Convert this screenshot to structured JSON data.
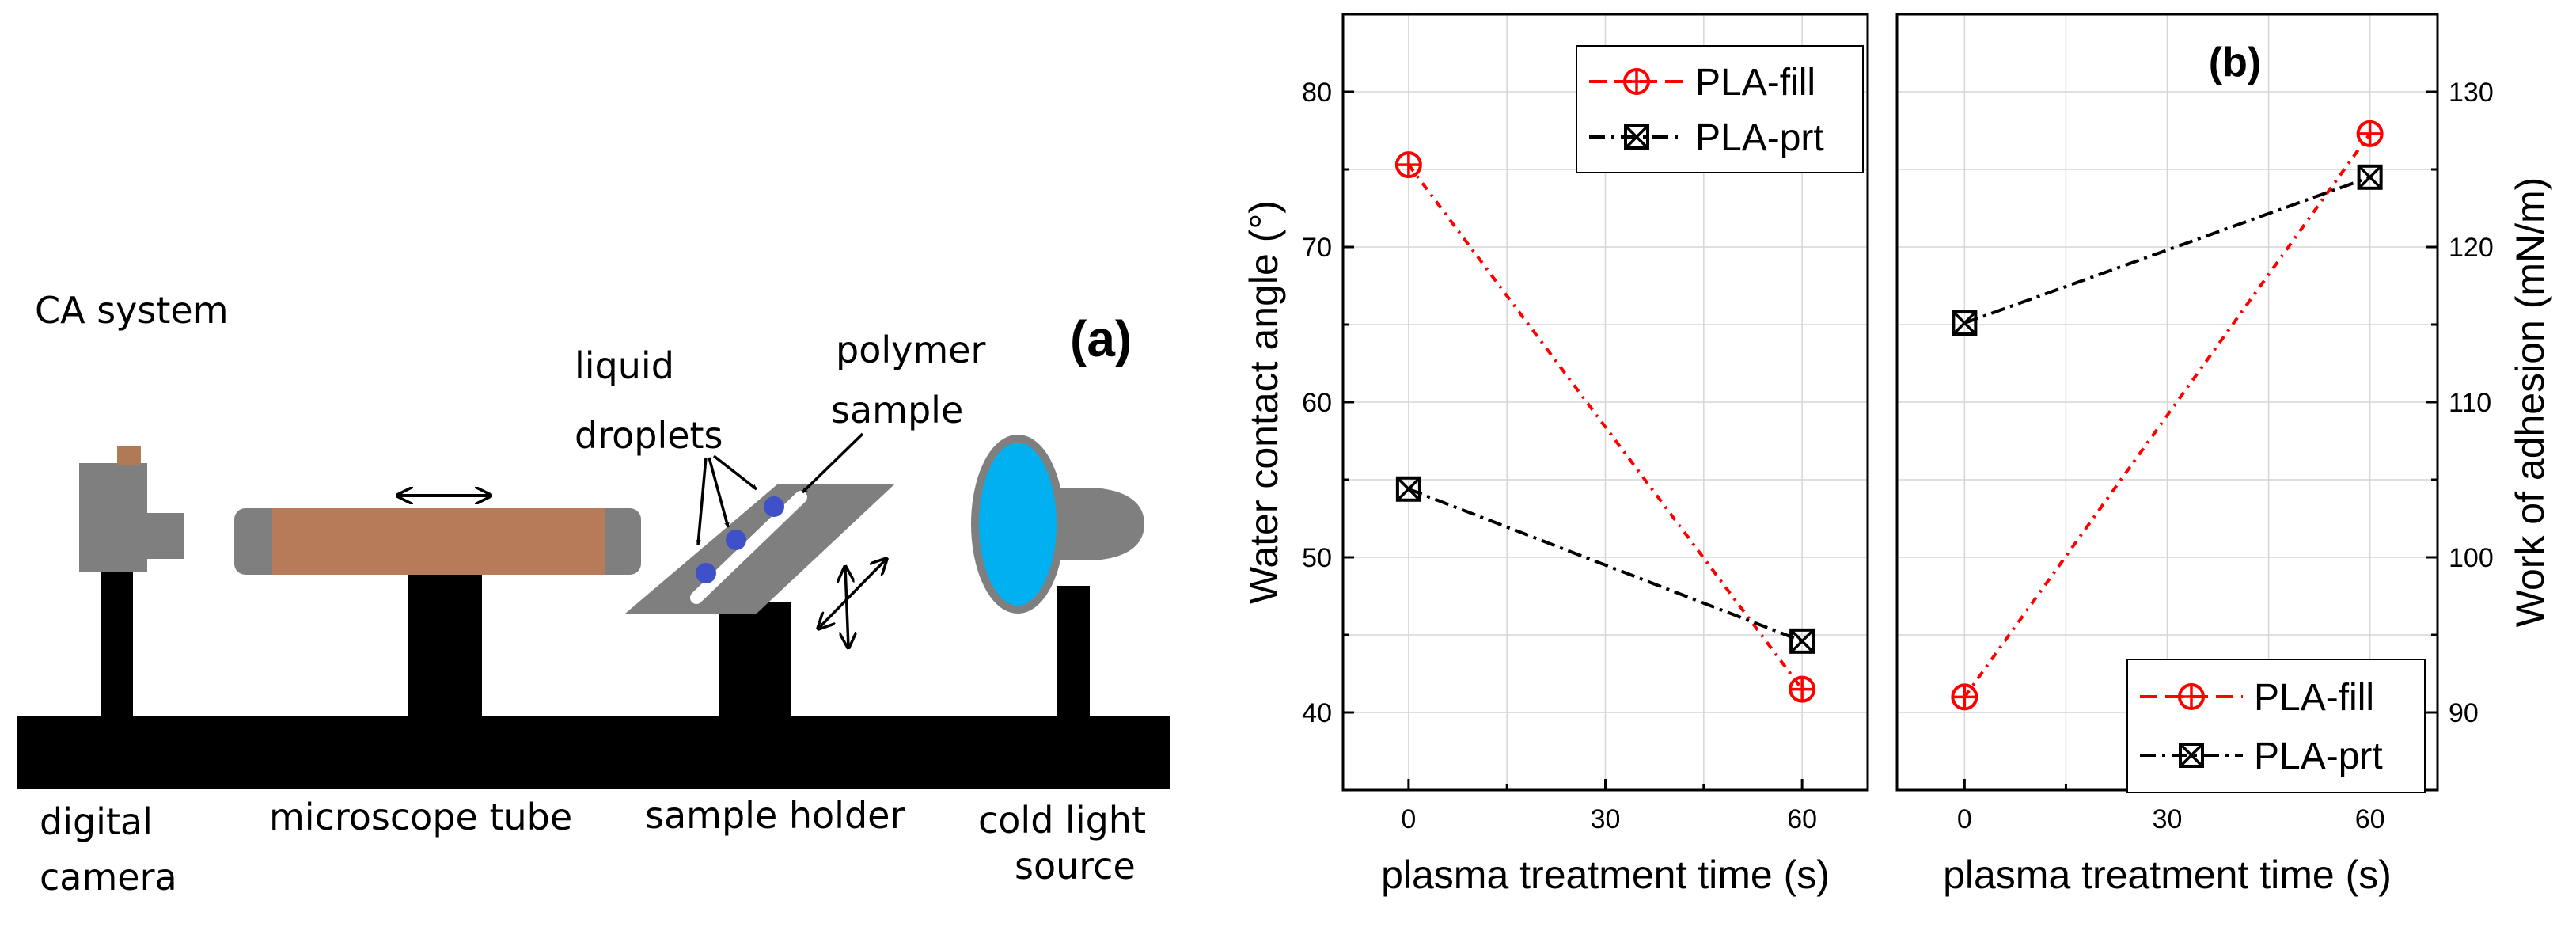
{
  "schematic": {
    "title": "CA system",
    "panel_label": "(a)",
    "labels": {
      "liquid_1": "liquid",
      "liquid_2": "droplets",
      "polymer_1": "polymer",
      "polymer_2": "sample",
      "camera_1": "digital",
      "camera_2": "camera",
      "tube": "microscope tube",
      "holder": "sample holder",
      "light_1": "cold light",
      "light_2": "source"
    },
    "colors": {
      "base": "#000000",
      "camera_body": "#7f7f7f",
      "camera_top": "#b07a56",
      "tube": "#b87b5a",
      "tube_caps": "#7f7f7f",
      "lamp_lens": "#00b0f0",
      "droplets": "#3f51c8"
    }
  },
  "chart_data": [
    {
      "type": "line",
      "title": "",
      "xlabel": "plasma treatment time (s)",
      "ylabel": "Water contact angle (°)",
      "x": [
        0,
        60
      ],
      "xlim": [
        -10,
        70
      ],
      "ylim": [
        35,
        85
      ],
      "xticks": [
        "0",
        "30",
        "60"
      ],
      "yticks": [
        "40",
        "50",
        "60",
        "70",
        "80"
      ],
      "grid": true,
      "legend_position": "top-right",
      "series": [
        {
          "name": "PLA-fill",
          "values": [
            75.3,
            41.5
          ],
          "color": "#ff0000",
          "marker": "circle-plus"
        },
        {
          "name": "PLA-prt",
          "values": [
            54.4,
            44.6
          ],
          "color": "#000000",
          "marker": "square-x"
        }
      ]
    },
    {
      "type": "line",
      "title": "(b)",
      "xlabel": "plasma treatment time (s)",
      "ylabel": "Work of adhesion (mN/m)",
      "x": [
        0,
        60
      ],
      "xlim": [
        -10,
        70
      ],
      "ylim": [
        85,
        135
      ],
      "xticks": [
        "0",
        "30",
        "60"
      ],
      "yticks": [
        "90",
        "100",
        "110",
        "120",
        "130"
      ],
      "grid": true,
      "y_axis_side": "right",
      "legend_position": "bottom-right",
      "series": [
        {
          "name": "PLA-fill",
          "values": [
            91.0,
            127.3
          ],
          "color": "#ff0000",
          "marker": "circle-plus"
        },
        {
          "name": "PLA-prt",
          "values": [
            115.1,
            124.5
          ],
          "color": "#000000",
          "marker": "square-x"
        }
      ]
    }
  ]
}
